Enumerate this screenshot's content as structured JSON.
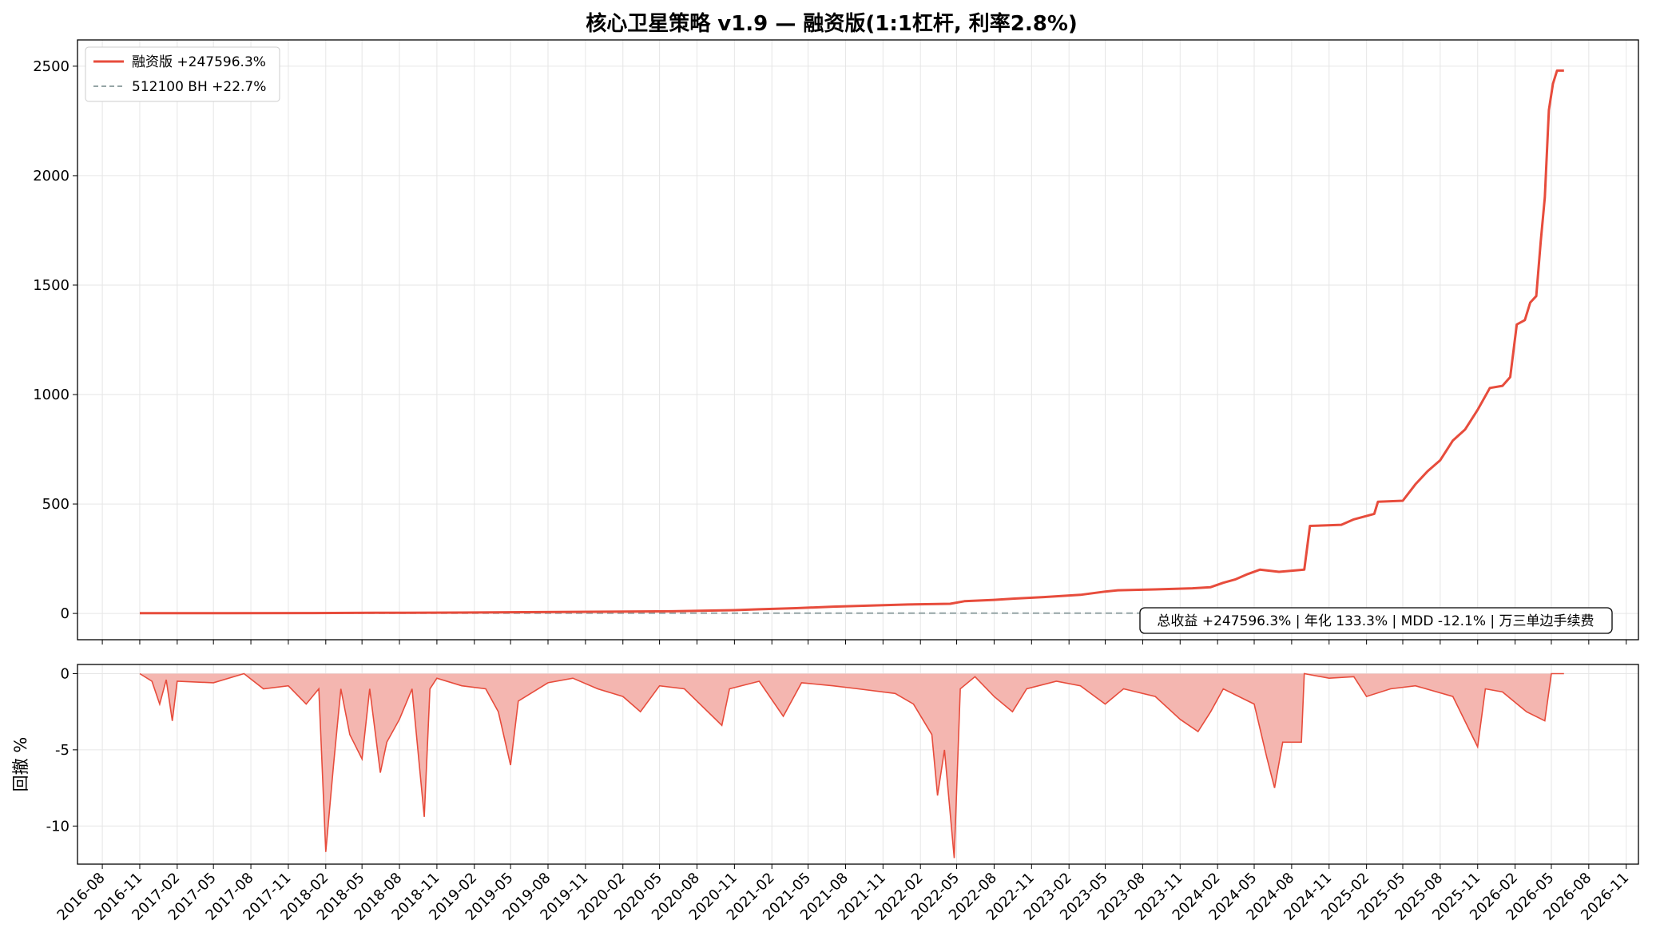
{
  "chart_data": [
    {
      "type": "line",
      "title": "核心卫星策略 v1.9 — 融资版(1:1杠杆, 利率2.8%)",
      "ylim": [
        -120,
        2620
      ],
      "xlim": [
        "2016-06-01",
        "2026-12-01"
      ],
      "yticks": [
        0,
        500,
        1000,
        1500,
        2000,
        2500
      ],
      "grid": true,
      "legend": "top-left",
      "series": [
        {
          "name": "融资版 +247596.3%",
          "color": "#e74c3c",
          "style": "solid",
          "points": [
            [
              "2016-11-01",
              1
            ],
            [
              "2017-06-01",
              1.5
            ],
            [
              "2018-01-01",
              2
            ],
            [
              "2018-06-01",
              3
            ],
            [
              "2019-01-01",
              4
            ],
            [
              "2019-06-01",
              6
            ],
            [
              "2020-01-01",
              8
            ],
            [
              "2020-06-01",
              10
            ],
            [
              "2020-11-01",
              15
            ],
            [
              "2021-01-01",
              19
            ],
            [
              "2021-04-01",
              24
            ],
            [
              "2021-07-01",
              31
            ],
            [
              "2021-10-01",
              36
            ],
            [
              "2022-01-01",
              41
            ],
            [
              "2022-04-15",
              44
            ],
            [
              "2022-05-20",
              56
            ],
            [
              "2022-08-01",
              62
            ],
            [
              "2022-09-20",
              68
            ],
            [
              "2022-12-01",
              75
            ],
            [
              "2023-03-01",
              85
            ],
            [
              "2023-05-01",
              100
            ],
            [
              "2023-06-01",
              106
            ],
            [
              "2023-09-01",
              110
            ],
            [
              "2023-12-01",
              115
            ],
            [
              "2024-01-15",
              120
            ],
            [
              "2024-02-15",
              140
            ],
            [
              "2024-03-15",
              155
            ],
            [
              "2024-04-15",
              180
            ],
            [
              "2024-05-15",
              200
            ],
            [
              "2024-07-01",
              190
            ],
            [
              "2024-09-01",
              200
            ],
            [
              "2024-09-15",
              400
            ],
            [
              "2024-12-01",
              405
            ],
            [
              "2025-01-01",
              430
            ],
            [
              "2025-02-20",
              455
            ],
            [
              "2025-03-01",
              510
            ],
            [
              "2025-05-01",
              515
            ],
            [
              "2025-06-01",
              590
            ],
            [
              "2025-07-01",
              650
            ],
            [
              "2025-08-01",
              700
            ],
            [
              "2025-09-01",
              790
            ],
            [
              "2025-10-01",
              840
            ],
            [
              "2025-11-01",
              930
            ],
            [
              "2025-12-01",
              1030
            ],
            [
              "2026-01-01",
              1040
            ],
            [
              "2026-01-20",
              1080
            ],
            [
              "2026-02-05",
              1320
            ],
            [
              "2026-02-25",
              1340
            ],
            [
              "2026-03-10",
              1420
            ],
            [
              "2026-03-25",
              1450
            ],
            [
              "2026-04-05",
              1700
            ],
            [
              "2026-04-15",
              1900
            ],
            [
              "2026-04-25",
              2300
            ],
            [
              "2026-05-05",
              2420
            ],
            [
              "2026-05-15",
              2480
            ],
            [
              "2026-06-01",
              2480
            ]
          ]
        },
        {
          "name": "512100 BH +22.7%",
          "color": "#95a5a6",
          "style": "dashed",
          "points": [
            [
              "2016-11-01",
              1
            ],
            [
              "2020-01-01",
              1.1
            ],
            [
              "2023-01-01",
              1.15
            ],
            [
              "2026-06-01",
              1.23
            ]
          ]
        }
      ],
      "annotation": "总收益 +247596.3% | 年化 133.3% | MDD -12.1% | 万三单边手续费"
    },
    {
      "type": "area",
      "ylabel": "回撤 %",
      "ylim": [
        -12.5,
        0.6
      ],
      "yticks": [
        0,
        -5,
        -10
      ],
      "grid": true,
      "color": "#e74c3c",
      "fill_color": "#f4b6b0",
      "points": [
        [
          "2016-11-01",
          0
        ],
        [
          "2016-12-01",
          -0.5
        ],
        [
          "2016-12-20",
          -2
        ],
        [
          "2017-01-05",
          -0.4
        ],
        [
          "2017-01-20",
          -3.1
        ],
        [
          "2017-02-01",
          -0.5
        ],
        [
          "2017-05-01",
          -0.6
        ],
        [
          "2017-07-15",
          0
        ],
        [
          "2017-09-01",
          -1
        ],
        [
          "2017-11-01",
          -0.8
        ],
        [
          "2017-12-15",
          -2
        ],
        [
          "2018-01-15",
          -1
        ],
        [
          "2018-02-01",
          -11.7
        ],
        [
          "2018-02-20",
          -6
        ],
        [
          "2018-03-10",
          -1
        ],
        [
          "2018-04-01",
          -4
        ],
        [
          "2018-05-01",
          -5.6
        ],
        [
          "2018-05-20",
          -1
        ],
        [
          "2018-06-15",
          -6.5
        ],
        [
          "2018-07-01",
          -4.5
        ],
        [
          "2018-08-01",
          -3
        ],
        [
          "2018-09-01",
          -1
        ],
        [
          "2018-10-01",
          -9.4
        ],
        [
          "2018-10-15",
          -1
        ],
        [
          "2018-11-01",
          -0.3
        ],
        [
          "2019-01-01",
          -0.8
        ],
        [
          "2019-03-01",
          -1
        ],
        [
          "2019-04-01",
          -2.5
        ],
        [
          "2019-05-01",
          -6
        ],
        [
          "2019-05-20",
          -1.8
        ],
        [
          "2019-08-01",
          -0.6
        ],
        [
          "2019-10-01",
          -0.3
        ],
        [
          "2019-12-01",
          -1
        ],
        [
          "2020-02-01",
          -1.5
        ],
        [
          "2020-03-15",
          -2.5
        ],
        [
          "2020-05-01",
          -0.8
        ],
        [
          "2020-07-01",
          -1
        ],
        [
          "2020-10-01",
          -3.4
        ],
        [
          "2020-10-20",
          -1
        ],
        [
          "2021-01-01",
          -0.5
        ],
        [
          "2021-03-01",
          -2.8
        ],
        [
          "2021-04-15",
          -0.6
        ],
        [
          "2021-07-01",
          -0.8
        ],
        [
          "2021-09-01",
          -1
        ],
        [
          "2021-12-01",
          -1.3
        ],
        [
          "2022-01-15",
          -2
        ],
        [
          "2022-03-01",
          -4
        ],
        [
          "2022-03-15",
          -8
        ],
        [
          "2022-04-01",
          -5
        ],
        [
          "2022-04-25",
          -12.1
        ],
        [
          "2022-05-10",
          -1
        ],
        [
          "2022-06-15",
          -0.2
        ],
        [
          "2022-08-01",
          -1.5
        ],
        [
          "2022-09-15",
          -2.5
        ],
        [
          "2022-10-20",
          -1
        ],
        [
          "2023-01-01",
          -0.5
        ],
        [
          "2023-03-01",
          -0.8
        ],
        [
          "2023-05-01",
          -2
        ],
        [
          "2023-06-15",
          -1
        ],
        [
          "2023-09-01",
          -1.5
        ],
        [
          "2023-11-01",
          -3
        ],
        [
          "2023-12-15",
          -3.8
        ],
        [
          "2024-01-15",
          -2.5
        ],
        [
          "2024-02-15",
          -1
        ],
        [
          "2024-05-01",
          -2
        ],
        [
          "2024-06-01",
          -5.5
        ],
        [
          "2024-06-20",
          -7.5
        ],
        [
          "2024-07-10",
          -4.5
        ],
        [
          "2024-08-25",
          -4.5
        ],
        [
          "2024-09-01",
          0
        ],
        [
          "2024-11-01",
          -0.3
        ],
        [
          "2025-01-01",
          -0.2
        ],
        [
          "2025-02-01",
          -1.5
        ],
        [
          "2025-04-01",
          -1
        ],
        [
          "2025-06-01",
          -0.8
        ],
        [
          "2025-09-01",
          -1.5
        ],
        [
          "2025-11-01",
          -4.8
        ],
        [
          "2025-11-20",
          -1
        ],
        [
          "2026-01-01",
          -1.2
        ],
        [
          "2026-03-01",
          -2.5
        ],
        [
          "2026-04-15",
          -3.1
        ],
        [
          "2026-05-01",
          0
        ],
        [
          "2026-06-01",
          0
        ]
      ]
    }
  ],
  "x_tick_labels": [
    "2016-08",
    "2016-11",
    "2017-02",
    "2017-05",
    "2017-08",
    "2017-11",
    "2018-02",
    "2018-05",
    "2018-08",
    "2018-11",
    "2019-02",
    "2019-05",
    "2019-08",
    "2019-11",
    "2020-02",
    "2020-05",
    "2020-08",
    "2020-11",
    "2021-02",
    "2021-05",
    "2021-08",
    "2021-11",
    "2022-02",
    "2022-05",
    "2022-08",
    "2022-11",
    "2023-02",
    "2023-05",
    "2023-08",
    "2023-11",
    "2024-02",
    "2024-05",
    "2024-08",
    "2024-11",
    "2025-02",
    "2025-05",
    "2025-08",
    "2025-11",
    "2026-02",
    "2026-05",
    "2026-08",
    "2026-11"
  ]
}
